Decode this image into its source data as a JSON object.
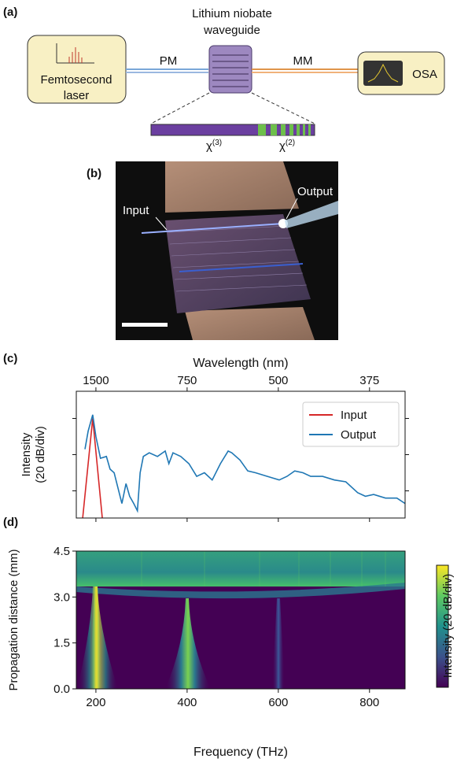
{
  "panels": {
    "a": {
      "label": "(a)",
      "waveguide": [
        "Lithium niobate",
        "waveguide"
      ],
      "laser": [
        "Femtosecond",
        "laser"
      ],
      "pm": "PM",
      "mm": "MM",
      "osa": "OSA",
      "chi3": {
        "base": "χ",
        "sup": "(3)"
      },
      "chi2": {
        "base": "χ",
        "sup": "(2)"
      }
    },
    "b": {
      "label": "(b)",
      "input": "Input",
      "output": "Output"
    }
  },
  "chart_data": [
    {
      "type": "line",
      "panel_label": "(c)",
      "xlabel_top": "Wavelength (nm)",
      "ylabel": [
        "Intensity",
        "(20 dB/div)"
      ],
      "xlim": [
        157,
        878
      ],
      "ylim": [
        -65,
        5
      ],
      "xticks_top": [
        {
          "value": 200,
          "label": "1500"
        },
        {
          "value": 400,
          "label": "750"
        },
        {
          "value": 600,
          "label": "500"
        },
        {
          "value": 800,
          "label": "375"
        }
      ],
      "yticks": [
        -50,
        -30,
        -10
      ],
      "ytick_labels": false,
      "legend": "upper right",
      "series": [
        {
          "name": "Input",
          "color": "#d62728",
          "x": [
            171,
            193,
            214
          ],
          "values": [
            -65,
            -10,
            -65
          ]
        },
        {
          "name": "Output",
          "color": "#1f77b4",
          "x": [
            176,
            183,
            193,
            200,
            210,
            223,
            231,
            240,
            248,
            257,
            266,
            274,
            283,
            291,
            297,
            304,
            317,
            335,
            352,
            360,
            369,
            386,
            404,
            421,
            438,
            455,
            473,
            490,
            498,
            516,
            533,
            550,
            576,
            602,
            619,
            636,
            654,
            671,
            697,
            723,
            748,
            774,
            791,
            809,
            835,
            860,
            878
          ],
          "values": [
            -27,
            -17,
            -8,
            -20,
            -32,
            -31,
            -38,
            -40,
            -48,
            -57,
            -46,
            -53,
            -57,
            -61,
            -40,
            -31,
            -29,
            -31,
            -28,
            -35,
            -29,
            -31,
            -35,
            -42,
            -40,
            -44,
            -35,
            -28,
            -29,
            -33,
            -39,
            -40,
            -42,
            -44,
            -42,
            -39,
            -40,
            -42,
            -42,
            -44,
            -45,
            -51,
            -53,
            -52,
            -54,
            -54,
            -57
          ]
        }
      ]
    },
    {
      "type": "heatmap",
      "panel_label": "(d)",
      "xlabel": "Frequency (THz)",
      "ylabel": "Propagation distance (mm)",
      "colorbar_label": "Intensity (20 dB/div)",
      "xlim": [
        157,
        878
      ],
      "ylim": [
        0,
        4.5
      ],
      "xticks": [
        200,
        400,
        600,
        800
      ],
      "yticks": [
        {
          "value": 0,
          "label": "0.0"
        },
        1.5,
        {
          "value": 3,
          "label": "3.0"
        },
        4.5
      ]
    }
  ]
}
